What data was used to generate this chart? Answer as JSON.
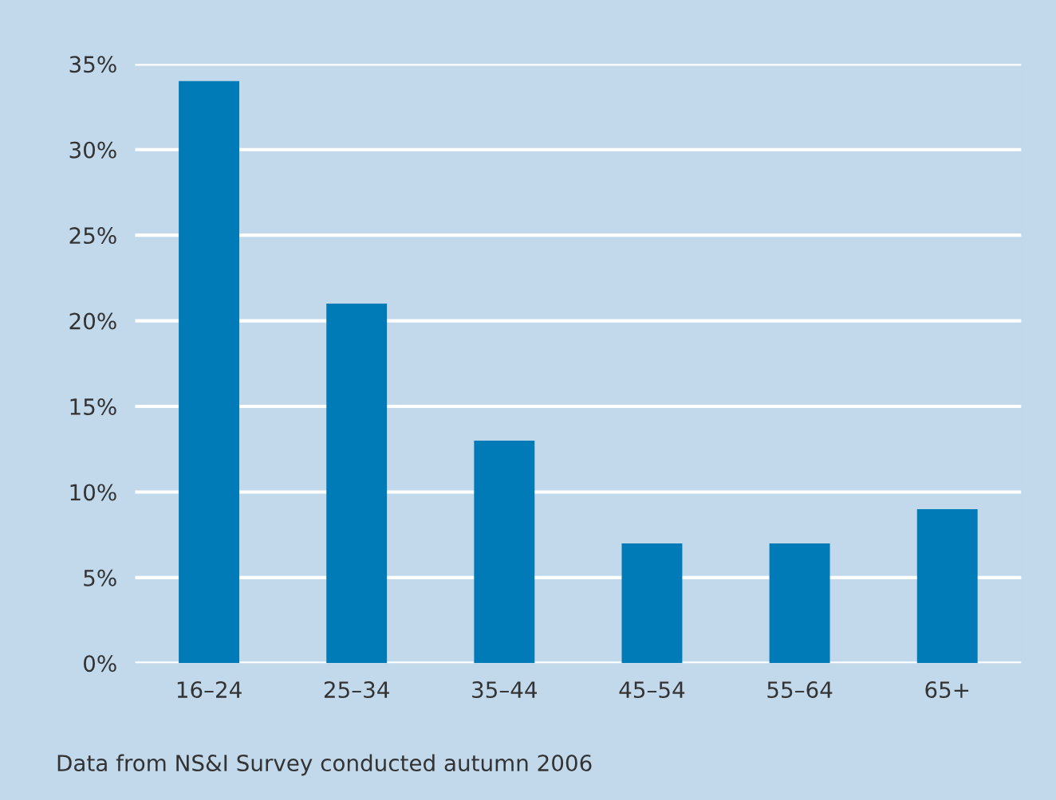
{
  "chart_data": {
    "type": "bar",
    "categories": [
      "16–24",
      "25–34",
      "35–44",
      "45–54",
      "55–64",
      "65+"
    ],
    "values": [
      34,
      21,
      13,
      7,
      7,
      9
    ],
    "color": "#007bb8",
    "ylim": [
      0,
      35
    ],
    "yticks": [
      {
        "value": 0,
        "label": "0%"
      },
      {
        "value": 5,
        "label": "5%"
      },
      {
        "value": 10,
        "label": "10%"
      },
      {
        "value": 15,
        "label": "15%"
      },
      {
        "value": 20,
        "label": "20%"
      },
      {
        "value": 25,
        "label": "25%"
      },
      {
        "value": 30,
        "label": "30%"
      },
      {
        "value": 35,
        "label": "35%"
      }
    ],
    "grid": "y",
    "annotations": [
      "Data from NS&I Survey conducted autumn 2006"
    ]
  }
}
